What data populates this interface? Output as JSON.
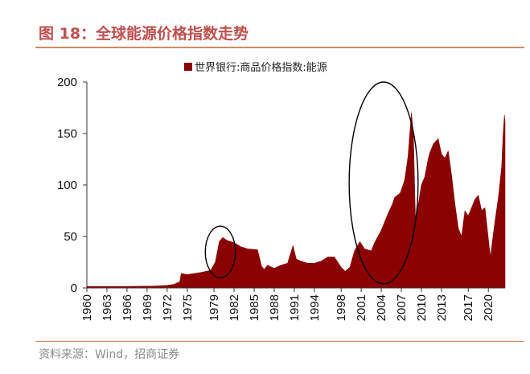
{
  "header": {
    "title": "图 18：全球能源价格指数走势"
  },
  "footer": {
    "source": "资料来源：Wind，招商证券"
  },
  "colors": {
    "series": "#8b0000",
    "title": "#c0504d",
    "rule": "#d08a66"
  },
  "chart_data": {
    "type": "area",
    "title": "",
    "xlabel": "",
    "ylabel": "",
    "ylim": [
      0,
      200
    ],
    "xlim": [
      1960,
      2022.5
    ],
    "yticks": [
      0,
      50,
      100,
      150,
      200
    ],
    "xticks": [
      1960,
      1963,
      1966,
      1969,
      1972,
      1975,
      1979,
      1982,
      1985,
      1988,
      1991,
      1994,
      1998,
      2001,
      2004,
      2007,
      2010,
      2013,
      2017,
      2020
    ],
    "grid": false,
    "legend_position": "top-right",
    "series": [
      {
        "name": "世界银行:商品价格指数:能源",
        "x": [
          1960,
          1966,
          1970,
          1972,
          1973,
          1973.9,
          1974.1,
          1975,
          1977,
          1978.5,
          1979.2,
          1979.8,
          1980.3,
          1981,
          1982,
          1983,
          1984,
          1985.5,
          1986.1,
          1986.5,
          1987,
          1988,
          1989,
          1990,
          1990.5,
          1990.8,
          1991.3,
          1992,
          1993,
          1994,
          1995,
          1996,
          1997,
          1997.5,
          1998,
          1998.6,
          1999.3,
          2000,
          2000.8,
          2001.5,
          2002.5,
          2003,
          2004,
          2005,
          2005.7,
          2006,
          2006.8,
          2007,
          2007.5,
          2008.0,
          2008.5,
          2008.8,
          2009.1,
          2009.5,
          2010,
          2010.5,
          2011,
          2011.3,
          2011.8,
          2012.5,
          2013,
          2013.5,
          2014,
          2014.5,
          2015,
          2015.5,
          2016,
          2016.5,
          2017,
          2018,
          2018.5,
          2019,
          2019.5,
          2020,
          2020.3,
          2020.6,
          2021,
          2021.5,
          2022,
          2022.2,
          2022.4,
          2022.5
        ],
        "values": [
          1.5,
          1.5,
          1.8,
          2.5,
          3.5,
          6,
          14,
          13,
          15,
          17,
          25,
          45,
          49,
          46,
          44,
          40,
          38,
          37,
          21,
          18,
          22,
          19,
          22,
          24,
          35,
          41,
          28,
          26,
          24,
          24,
          26,
          30,
          30,
          25,
          20,
          16,
          20,
          36,
          45,
          38,
          36,
          44,
          56,
          72,
          82,
          88,
          92,
          95,
          105,
          128,
          170,
          150,
          68,
          80,
          100,
          108,
          125,
          132,
          140,
          145,
          130,
          126,
          133,
          110,
          82,
          58,
          50,
          75,
          70,
          86,
          90,
          75,
          78,
          48,
          30,
          45,
          65,
          88,
          118,
          148,
          168,
          160
        ]
      }
    ],
    "annotations": [
      {
        "type": "ellipse",
        "x_range": [
          1977.7,
          1982.2
        ],
        "y_range": [
          10,
          60
        ]
      },
      {
        "type": "ellipse",
        "x_range": [
          1999.2,
          2009.5
        ],
        "y_range": [
          4,
          200
        ]
      }
    ]
  }
}
